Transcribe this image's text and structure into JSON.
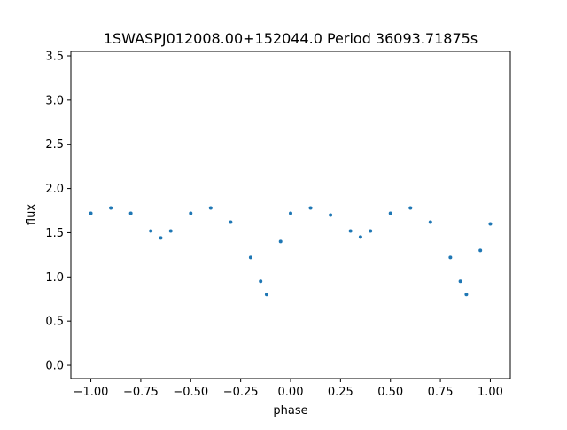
{
  "chart_data": {
    "type": "scatter",
    "title": "1SWASPJ012008.00+152044.0 Period 36093.71875s",
    "xlabel": "phase",
    "ylabel": "flux",
    "xlim": [
      -1.1,
      1.1
    ],
    "ylim": [
      -0.15,
      3.55
    ],
    "xticks": [
      -1.0,
      -0.75,
      -0.5,
      -0.25,
      0.0,
      0.25,
      0.5,
      0.75,
      1.0
    ],
    "xtick_labels": [
      "−1.00",
      "−0.75",
      "−0.50",
      "−0.25",
      "0.00",
      "0.25",
      "0.50",
      "0.75",
      "1.00"
    ],
    "yticks": [
      0.0,
      0.5,
      1.0,
      1.5,
      2.0,
      2.5,
      3.0,
      3.5
    ],
    "ytick_labels": [
      "0.0",
      "0.5",
      "1.0",
      "1.5",
      "2.0",
      "2.5",
      "3.0",
      "3.5"
    ],
    "grid": false,
    "point_color": "#1f77b4",
    "series": [
      {
        "x": [
          -1.0,
          -0.9,
          -0.8,
          -0.7,
          -0.65,
          -0.6,
          -0.5,
          -0.4,
          -0.3,
          -0.2,
          -0.15,
          -0.12,
          -0.05,
          0.0,
          0.1,
          0.2,
          0.3,
          0.35,
          0.4,
          0.5,
          0.6,
          0.7,
          0.8,
          0.85,
          0.88,
          0.95,
          1.0
        ],
        "y": [
          1.72,
          1.78,
          1.72,
          1.52,
          1.44,
          1.52,
          1.72,
          1.78,
          1.62,
          1.22,
          0.95,
          0.8,
          1.4,
          1.72,
          1.78,
          1.7,
          1.52,
          1.45,
          1.52,
          1.72,
          1.78,
          1.62,
          1.22,
          0.95,
          0.8,
          1.3,
          1.6
        ]
      }
    ]
  }
}
